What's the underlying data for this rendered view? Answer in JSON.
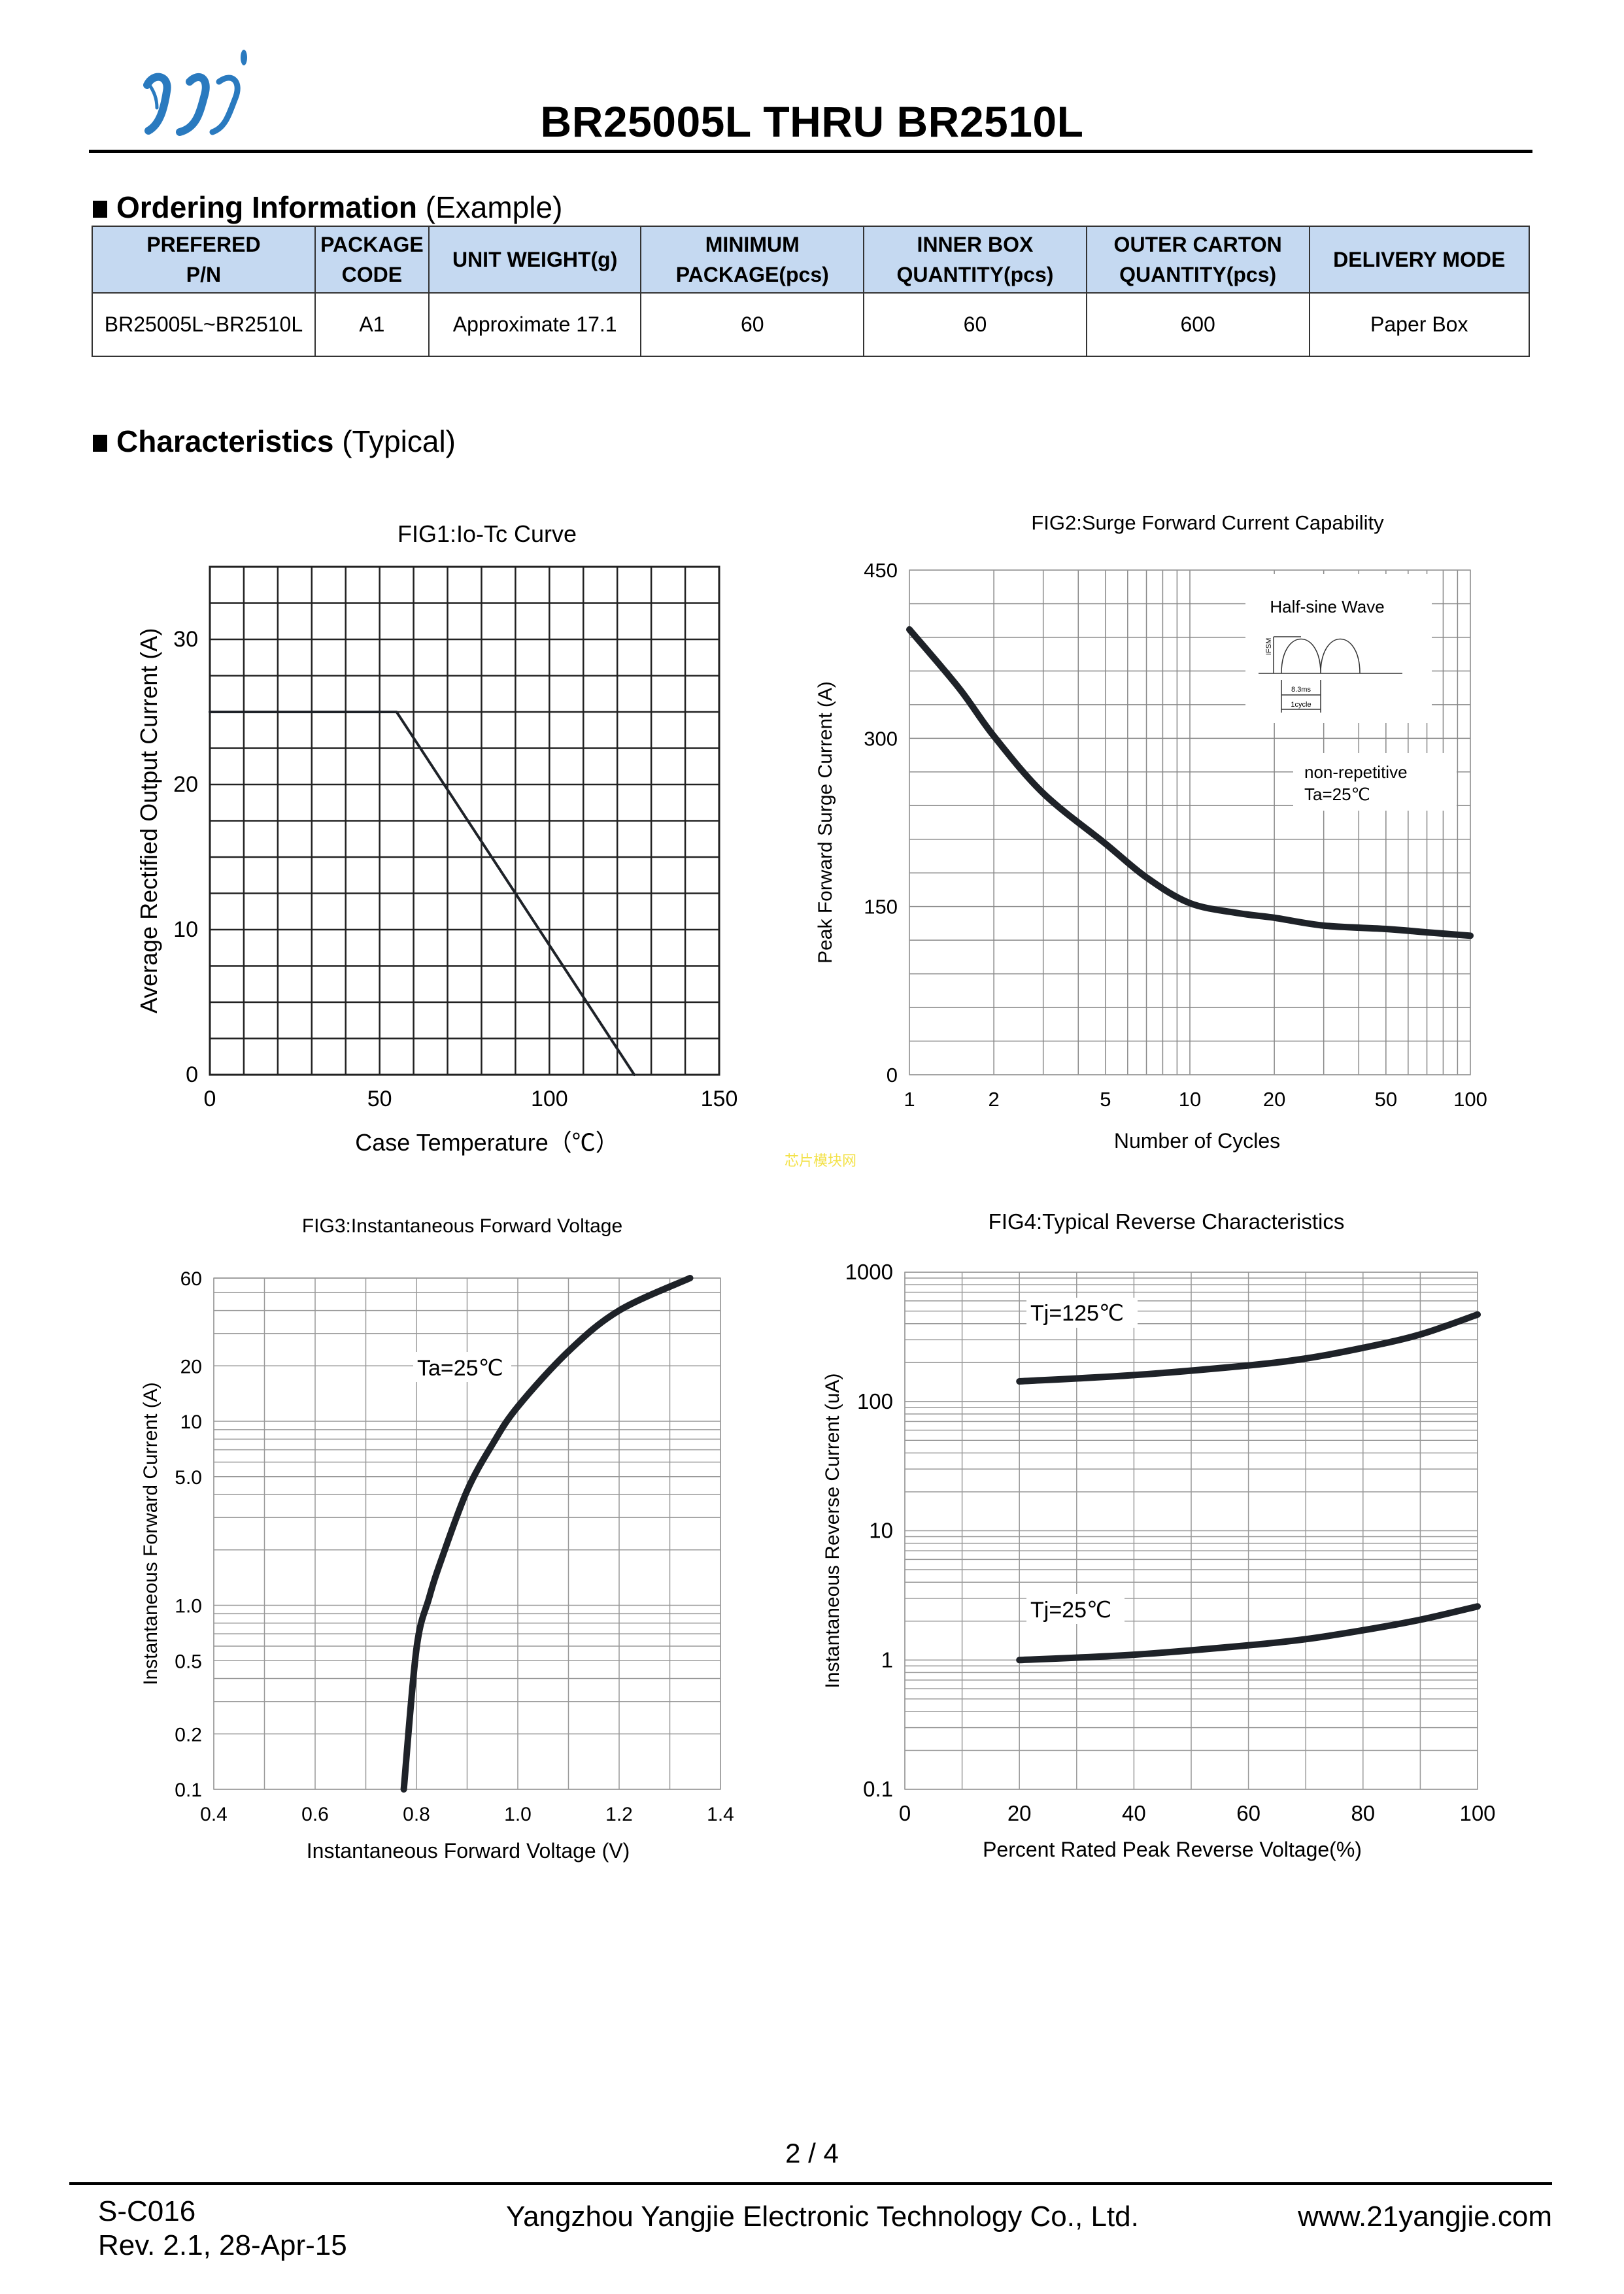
{
  "header": {
    "title": "BR25005L THRU BR2510L",
    "logo_text": "yj"
  },
  "ordering": {
    "heading": "Ordering Information",
    "heading_note": "(Example)",
    "columns": [
      "PREFERED\nP/N",
      "PACKAGE\nCODE",
      "UNIT WEIGHT(g)",
      "MINIMUM\nPACKAGE(pcs)",
      "INNER BOX\nQUANTITY(pcs)",
      "OUTER CARTON\nQUANTITY(pcs)",
      "DELIVERY MODE"
    ],
    "rows": [
      [
        "BR25005L~BR2510L",
        "A1",
        "Approximate 17.1",
        "60",
        "60",
        "600",
        "Paper Box"
      ]
    ]
  },
  "characteristics": {
    "heading": "Characteristics",
    "heading_note": "(Typical)"
  },
  "watermark": "芯片模块网",
  "chart_data": [
    {
      "type": "line",
      "title": "FIG1:Io-Tc Curve",
      "xlabel": "Case Temperature（℃）",
      "ylabel": "Average Rectified Output Current (A)",
      "xscale": "linear",
      "yscale": "linear",
      "xlim": [
        0,
        150
      ],
      "ylim": [
        0,
        35
      ],
      "grid": true,
      "x_ticks": [
        {
          "value": 0,
          "label": "0"
        },
        {
          "value": 50,
          "label": "50"
        },
        {
          "value": 100,
          "label": "100"
        },
        {
          "value": 150,
          "label": "150"
        }
      ],
      "y_ticks": [
        {
          "value": 0,
          "label": "0"
        },
        {
          "value": 10,
          "label": "10"
        },
        {
          "value": 20,
          "label": "20"
        },
        {
          "value": 30,
          "label": "30"
        }
      ],
      "series": [
        {
          "name": "Io",
          "x": [
            0,
            55,
            125
          ],
          "y": [
            25,
            25,
            0
          ]
        }
      ],
      "annotations": []
    },
    {
      "type": "line",
      "title": "FIG2:Surge Forward Current Capability",
      "xlabel": "Number of Cycles",
      "ylabel": "Peak Forward Surge Current (A)",
      "xscale": "log",
      "yscale": "linear",
      "xlim": [
        1,
        100
      ],
      "ylim": [
        0,
        450
      ],
      "grid": true,
      "x_ticks": [
        {
          "value": 1,
          "label": "1"
        },
        {
          "value": 2,
          "label": "2"
        },
        {
          "value": 5,
          "label": "5"
        },
        {
          "value": 10,
          "label": "10"
        },
        {
          "value": 20,
          "label": "20"
        },
        {
          "value": 50,
          "label": "50"
        },
        {
          "value": 100,
          "label": "100"
        }
      ],
      "y_ticks": [
        {
          "value": 0,
          "label": "0"
        },
        {
          "value": 150,
          "label": "150"
        },
        {
          "value": 300,
          "label": "300"
        },
        {
          "value": 450,
          "label": "450"
        }
      ],
      "series": [
        {
          "name": "IFSM",
          "x": [
            1,
            1.5,
            2,
            3,
            5,
            7,
            10,
            15,
            20,
            30,
            50,
            70,
            100
          ],
          "y": [
            397,
            345,
            302,
            251,
            206,
            176,
            153,
            144,
            140,
            133,
            130,
            127,
            124
          ]
        }
      ],
      "annotations": [
        "Half-sine Wave",
        "non-repetitive",
        "Ta=25℃"
      ],
      "inset": {
        "ifsm": "IFSM",
        "period": "8.3ms",
        "cycle": "1cycle"
      }
    },
    {
      "type": "line",
      "title": "FIG3:Instantaneous Forward Voltage",
      "xlabel": "Instantaneous Forward Voltage (V)",
      "ylabel": "Instantaneous Forward Current (A)",
      "xscale": "linear",
      "yscale": "log",
      "xlim": [
        0.4,
        1.4
      ],
      "ylim": [
        0.1,
        60
      ],
      "grid": true,
      "x_ticks": [
        {
          "value": 0.4,
          "label": "0.4"
        },
        {
          "value": 0.6,
          "label": "0.6"
        },
        {
          "value": 0.8,
          "label": "0.8"
        },
        {
          "value": 1.0,
          "label": "1.0"
        },
        {
          "value": 1.2,
          "label": "1.2"
        },
        {
          "value": 1.4,
          "label": "1.4"
        }
      ],
      "y_ticks": [
        {
          "value": 0.1,
          "label": "0.1"
        },
        {
          "value": 0.2,
          "label": "0.2"
        },
        {
          "value": 0.5,
          "label": "0.5"
        },
        {
          "value": 1.0,
          "label": "1.0"
        },
        {
          "value": 5.0,
          "label": "5.0"
        },
        {
          "value": 10,
          "label": "10"
        },
        {
          "value": 20,
          "label": "20"
        },
        {
          "value": 60,
          "label": "60"
        }
      ],
      "series": [
        {
          "name": "Ta=25℃",
          "x": [
            0.775,
            0.8,
            0.825,
            0.85,
            0.9,
            0.95,
            1.0,
            1.1,
            1.2,
            1.34
          ],
          "y": [
            0.1,
            0.58,
            1.1,
            1.8,
            4.2,
            7.5,
            12,
            24,
            40,
            60
          ]
        }
      ],
      "annotations": [
        "Ta=25℃"
      ]
    },
    {
      "type": "line",
      "title": "FIG4:Typical Reverse Characteristics",
      "xlabel": "Percent Rated Peak Reverse Voltage(%)",
      "ylabel": "Instantaneous Reverse Current (uA)",
      "xscale": "linear",
      "yscale": "log",
      "xlim": [
        0,
        100
      ],
      "ylim": [
        0.1,
        1000
      ],
      "grid": true,
      "x_ticks": [
        {
          "value": 0,
          "label": "0"
        },
        {
          "value": 20,
          "label": "20"
        },
        {
          "value": 40,
          "label": "40"
        },
        {
          "value": 60,
          "label": "60"
        },
        {
          "value": 80,
          "label": "80"
        },
        {
          "value": 100,
          "label": "100"
        }
      ],
      "y_ticks": [
        {
          "value": 0.1,
          "label": "0.1"
        },
        {
          "value": 1,
          "label": "1"
        },
        {
          "value": 10,
          "label": "10"
        },
        {
          "value": 100,
          "label": "100"
        },
        {
          "value": 1000,
          "label": "1000"
        }
      ],
      "series": [
        {
          "name": "Tj=125℃",
          "x": [
            20,
            40,
            60,
            70,
            80,
            90,
            100
          ],
          "y": [
            143,
            160,
            190,
            215,
            260,
            330,
            470
          ]
        },
        {
          "name": "Tj=25℃",
          "x": [
            20,
            40,
            60,
            70,
            80,
            90,
            100
          ],
          "y": [
            1.0,
            1.1,
            1.3,
            1.45,
            1.7,
            2.05,
            2.6
          ]
        }
      ],
      "annotations": [
        "Tj=125℃",
        "Tj=25℃"
      ]
    }
  ],
  "footer": {
    "page": "2 / 4",
    "doc_code": "S-C016",
    "revision": "Rev. 2.1, 28-Apr-15",
    "company": "Yangzhou Yangjie Electronic Technology Co., Ltd.",
    "website": "www.21yangjie.com"
  }
}
